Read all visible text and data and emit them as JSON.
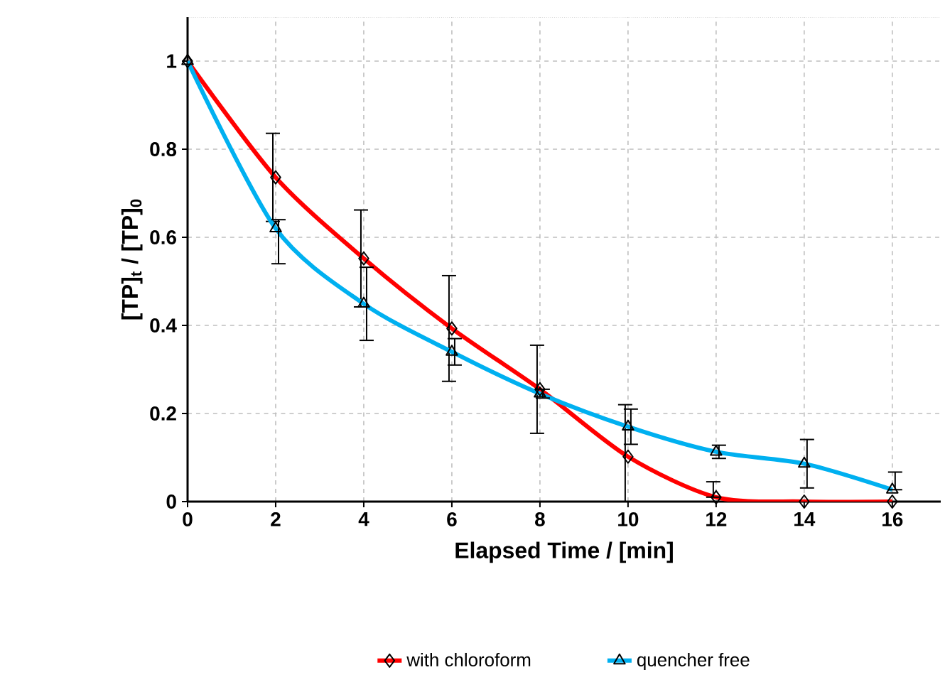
{
  "chart_data": {
    "type": "line",
    "xlabel": "Elapsed Time / [min]",
    "ylabel": "[TP]$_{t}$ / [TP]$_{0}$",
    "x": [
      0,
      2,
      4,
      6,
      8,
      10,
      12,
      14,
      16
    ],
    "series": [
      {
        "name": "with chloroform",
        "color": "#ff0000",
        "marker": "diamond",
        "values": [
          1,
          0.736,
          0.552,
          0.393,
          0.255,
          0.102,
          0.01,
          0,
          0
        ],
        "errors": [
          null,
          0.1,
          0.11,
          0.12,
          0.1,
          [
            0,
            0.22
          ],
          [
            0.01,
            0.045
          ],
          null,
          null
        ]
      },
      {
        "name": "quencher free",
        "color": "#00b0f0",
        "marker": "triangle",
        "values": [
          1,
          0.62,
          0.449,
          0.34,
          0.245,
          0.17,
          0.113,
          0.086,
          0.027
        ],
        "errors": [
          null,
          [
            0.54,
            0.64
          ],
          0.083,
          0.03,
          0.01,
          0.04,
          0.015,
          0.055,
          [
            0.027,
            0.067
          ]
        ]
      }
    ],
    "xlim": [
      0,
      17.1
    ],
    "ylim": [
      0,
      1.1
    ],
    "xticks": [
      0,
      2,
      4,
      6,
      8,
      10,
      12,
      14,
      16
    ],
    "yticks": [
      0,
      0.2,
      0.4,
      0.6,
      0.8,
      1
    ],
    "grid": true,
    "legend": "bottom",
    "line_style": "solid"
  }
}
